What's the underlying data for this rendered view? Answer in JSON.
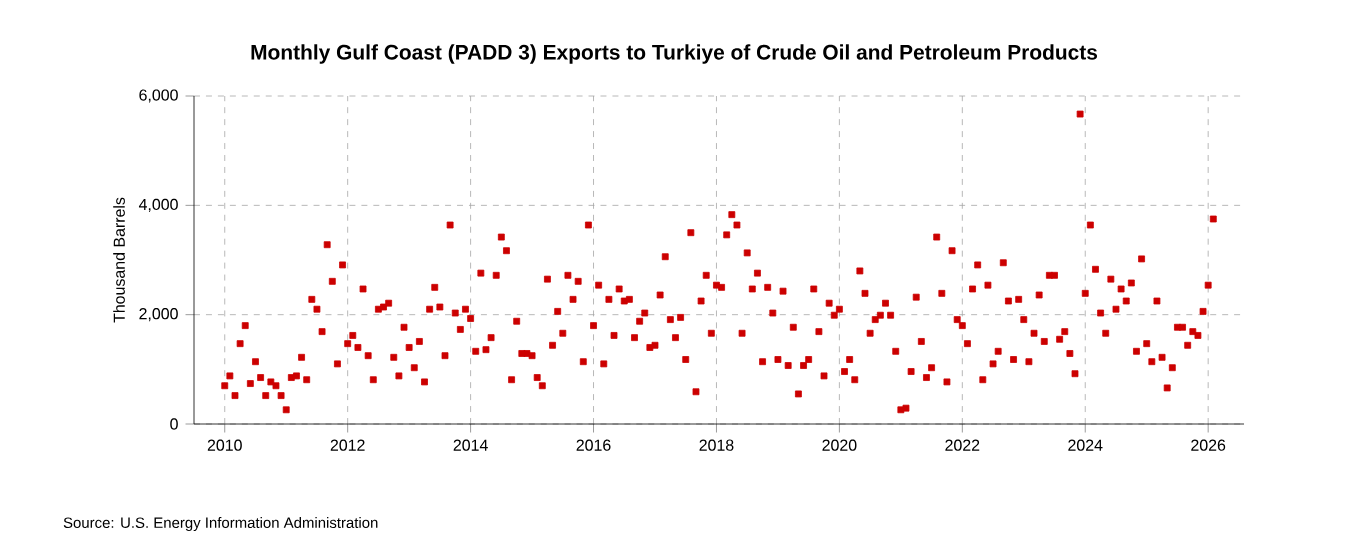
{
  "chart_data": {
    "type": "scatter",
    "title": "Monthly Gulf Coast (PADD 3) Exports to Turkiye of Crude Oil and Petroleum Products",
    "ylabel": "Thousand Barrels",
    "annotations": [
      "Source: U.S. Energy Information Administration"
    ],
    "x": [
      "2010-01",
      "2010-02",
      "2010-03",
      "2010-04",
      "2010-05",
      "2010-06",
      "2010-07",
      "2010-08",
      "2010-09",
      "2010-10",
      "2010-11",
      "2010-12",
      "2011-01",
      "2011-02",
      "2011-03",
      "2011-04",
      "2011-05",
      "2011-06",
      "2011-07",
      "2011-08",
      "2011-09",
      "2011-10",
      "2011-11",
      "2011-12",
      "2012-01",
      "2012-02",
      "2012-03",
      "2012-04",
      "2012-05",
      "2012-06",
      "2012-07",
      "2012-08",
      "2012-09",
      "2012-10",
      "2012-11",
      "2012-12",
      "2013-01",
      "2013-02",
      "2013-03",
      "2013-04",
      "2013-05",
      "2013-06",
      "2013-07",
      "2013-08",
      "2013-09",
      "2013-10",
      "2013-11",
      "2013-12",
      "2014-01",
      "2014-02",
      "2014-03",
      "2014-04",
      "2014-05",
      "2014-06",
      "2014-07",
      "2014-08",
      "2014-09",
      "2014-10",
      "2014-11",
      "2014-12",
      "2015-01",
      "2015-02",
      "2015-03",
      "2015-04",
      "2015-05",
      "2015-06",
      "2015-07",
      "2015-08",
      "2015-09",
      "2015-10",
      "2015-11",
      "2015-12",
      "2016-01",
      "2016-02",
      "2016-03",
      "2016-04",
      "2016-05",
      "2016-06",
      "2016-07",
      "2016-08",
      "2016-09",
      "2016-10",
      "2016-11",
      "2016-12",
      "2017-01",
      "2017-02",
      "2017-03",
      "2017-04",
      "2017-05",
      "2017-06",
      "2017-07",
      "2017-08",
      "2017-09",
      "2017-10",
      "2017-11",
      "2017-12",
      "2018-01",
      "2018-02",
      "2018-03",
      "2018-04",
      "2018-05",
      "2018-06",
      "2018-07",
      "2018-08",
      "2018-09",
      "2018-10",
      "2018-11",
      "2018-12",
      "2019-01",
      "2019-02",
      "2019-03",
      "2019-04",
      "2019-05",
      "2019-06",
      "2019-07",
      "2019-08",
      "2019-09",
      "2019-10",
      "2019-11",
      "2019-12",
      "2020-01",
      "2020-02",
      "2020-03",
      "2020-04",
      "2020-05",
      "2020-06",
      "2020-07",
      "2020-08",
      "2020-09",
      "2020-10",
      "2020-11",
      "2020-12",
      "2021-01",
      "2021-02",
      "2021-03",
      "2021-04",
      "2021-05",
      "2021-06",
      "2021-07",
      "2021-08",
      "2021-09",
      "2021-10",
      "2021-11",
      "2021-12",
      "2022-01",
      "2022-02",
      "2022-03",
      "2022-04",
      "2022-05",
      "2022-06",
      "2022-07",
      "2022-08",
      "2022-09",
      "2022-10",
      "2022-11",
      "2022-12",
      "2023-01",
      "2023-02",
      "2023-03",
      "2023-04",
      "2023-05",
      "2023-06",
      "2023-07",
      "2023-08",
      "2023-09",
      "2023-10",
      "2023-11",
      "2023-12",
      "2024-01",
      "2024-02",
      "2024-03",
      "2024-04",
      "2024-05",
      "2024-06",
      "2024-07",
      "2024-08",
      "2024-09",
      "2024-10",
      "2024-11",
      "2024-12",
      "2025-01",
      "2025-02",
      "2025-03",
      "2025-04",
      "2025-05",
      "2025-06",
      "2025-07",
      "2025-08",
      "2025-09",
      "2025-10",
      "2025-11",
      "2025-12",
      "2026-01",
      "2026-02"
    ],
    "values": [
      700,
      880,
      520,
      1470,
      1800,
      740,
      1140,
      850,
      520,
      770,
      700,
      520,
      260,
      850,
      880,
      1220,
      810,
      2280,
      2100,
      1690,
      3280,
      2610,
      1100,
      2910,
      1470,
      1620,
      1400,
      2470,
      1250,
      810,
      2100,
      2140,
      2210,
      1220,
      880,
      1770,
      1400,
      1030,
      1510,
      770,
      2100,
      2500,
      2140,
      1250,
      3640,
      2030,
      1730,
      2100,
      1930,
      1330,
      2760,
      1360,
      1580,
      2720,
      3420,
      3170,
      810,
      1880,
      1290,
      1290,
      1250,
      850,
      700,
      2650,
      1440,
      2060,
      1660,
      2720,
      2280,
      2610,
      1140,
      3640,
      1800,
      2540,
      1100,
      2280,
      1620,
      2470,
      2250,
      2280,
      1580,
      1880,
      2030,
      1400,
      1440,
      2360,
      3060,
      1910,
      1580,
      1950,
      1180,
      3500,
      590,
      2250,
      2720,
      1660,
      2540,
      2500,
      3460,
      3830,
      3640,
      1660,
      3130,
      2470,
      2760,
      1140,
      2500,
      2030,
      1180,
      2430,
      1070,
      1770,
      550,
      1070,
      1180,
      2470,
      1690,
      880,
      2210,
      1990,
      2100,
      960,
      1180,
      810,
      2800,
      2390,
      1660,
      1910,
      1990,
      2210,
      1990,
      1330,
      260,
      290,
      960,
      2320,
      1510,
      850,
      1030,
      3420,
      2390,
      770,
      3170,
      1910,
      1800,
      1470,
      2470,
      2910,
      810,
      2540,
      1100,
      1330,
      2950,
      2250,
      1180,
      2280,
      1910,
      1140,
      1660,
      2360,
      1510,
      2720,
      2720,
      1550,
      1690,
      1290,
      920,
      5670,
      2390,
      3640,
      2830,
      2030,
      1660,
      2650,
      2100,
      2470,
      2250,
      2580,
      1330,
      3020,
      1470,
      1140,
      2250,
      1220,
      660,
      1030,
      1770,
      1770,
      1440,
      1690,
      1620,
      2060,
      2540,
      3750
    ],
    "color": "#cc0000",
    "marker": "square",
    "grid": true,
    "xlim": [
      "2009-07",
      "2026-08"
    ],
    "xticks": [
      "2010",
      "2012",
      "2014",
      "2016",
      "2018",
      "2020",
      "2022",
      "2024",
      "2026"
    ],
    "ylim": [
      0,
      6000
    ],
    "yticks": [
      0,
      {
        "value": 2000,
        "label": "2,000"
      },
      {
        "value": 4000,
        "label": "4,000"
      },
      {
        "value": 6000,
        "label": "6,000"
      }
    ]
  }
}
